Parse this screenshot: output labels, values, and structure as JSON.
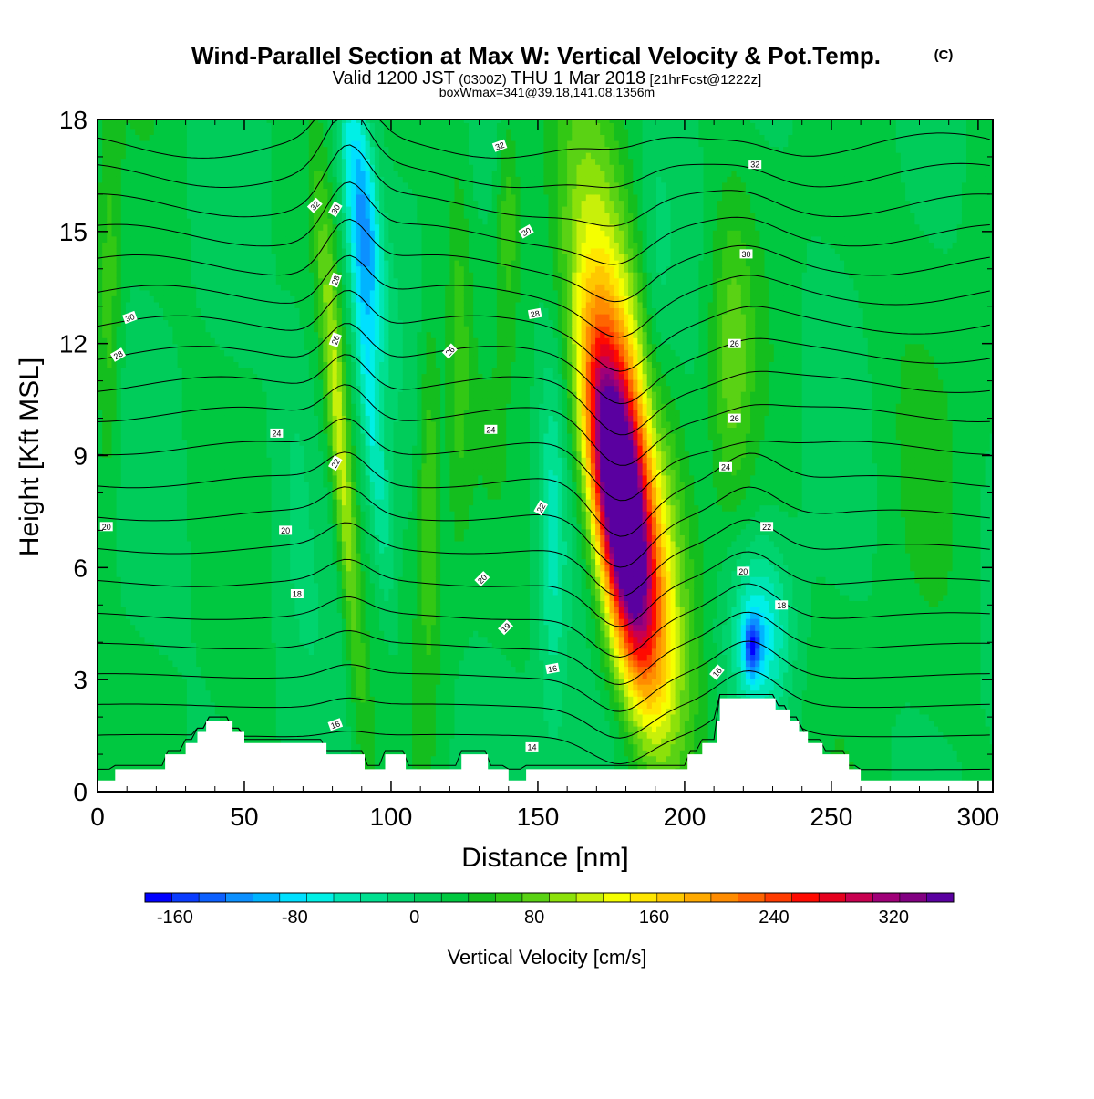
{
  "header": {
    "title_main": "Wind-Parallel Section at Max W: Vertical Velocity & Pot.Temp.",
    "title_mark": "(C)",
    "valid_a": "Valid 1200 JST",
    "valid_b": "(0300Z)",
    "valid_c": "THU 1 Mar 2018",
    "valid_d": "[21hrFcst@1222z]",
    "boxinfo": "boxWmax=341@39.18,141.08,1356m"
  },
  "chart_data": {
    "type": "heatmap",
    "xlabel": "Distance [nm]",
    "ylabel": "Height [Kft MSL]",
    "xlim": [
      0,
      305
    ],
    "ylim": [
      0,
      18
    ],
    "xticks": [
      0,
      50,
      100,
      150,
      200,
      250,
      300
    ],
    "yticks": [
      0,
      3,
      6,
      9,
      12,
      15,
      18
    ],
    "grid": false,
    "background_value": 20,
    "velocity_features": [
      {
        "x": 178,
        "y": 7.6,
        "sx": 9,
        "sy": 4.5,
        "tilt": -1.6,
        "w": 360
      },
      {
        "x": 181,
        "y": 9.5,
        "sx": 13,
        "sy": 7.5,
        "tilt": -1.6,
        "w": 140
      },
      {
        "x": 83,
        "y": 9.0,
        "sx": 3.5,
        "sy": 6.5,
        "tilt": -1.0,
        "w": 95
      },
      {
        "x": 91,
        "y": 15.5,
        "sx": 5,
        "sy": 3.5,
        "tilt": -1.2,
        "w": -120
      },
      {
        "x": 92,
        "y": 11.0,
        "sx": 4,
        "sy": 6,
        "tilt": -1.2,
        "w": -75
      },
      {
        "x": 113,
        "y": 8.0,
        "sx": 4,
        "sy": 5,
        "tilt": 0,
        "w": 55
      },
      {
        "x": 123,
        "y": 12.0,
        "sx": 4,
        "sy": 5,
        "tilt": 0,
        "w": 40
      },
      {
        "x": 155,
        "y": 7.0,
        "sx": 5,
        "sy": 5,
        "tilt": 0,
        "w": -55
      },
      {
        "x": 226,
        "y": 4.3,
        "sx": 10,
        "sy": 2.2,
        "tilt": 0,
        "w": -80
      },
      {
        "x": 223,
        "y": 3.9,
        "sx": 3,
        "sy": 0.8,
        "tilt": 0,
        "w": -110
      },
      {
        "x": 216,
        "y": 11.5,
        "sx": 7,
        "sy": 4,
        "tilt": 0,
        "w": 55
      },
      {
        "x": 190,
        "y": 12.5,
        "sx": 5,
        "sy": 4,
        "tilt": 0,
        "w": -25
      },
      {
        "x": 140,
        "y": 15.5,
        "sx": 4,
        "sy": 3,
        "tilt": 0,
        "w": 50
      },
      {
        "x": 4,
        "y": 13.0,
        "sx": 4,
        "sy": 5,
        "tilt": 0,
        "w": 45
      },
      {
        "x": 68,
        "y": 10.0,
        "sx": 7,
        "sy": 5,
        "tilt": 0,
        "w": -20
      },
      {
        "x": 40,
        "y": 6.0,
        "sx": 10,
        "sy": 4,
        "tilt": 0,
        "w": -10
      },
      {
        "x": 280,
        "y": 12.0,
        "sx": 20,
        "sy": 6,
        "tilt": 0,
        "w": 12
      },
      {
        "x": 170,
        "y": 1.3,
        "sx": 20,
        "sy": 1.5,
        "tilt": 0,
        "w": -15
      }
    ],
    "terrain": [
      [
        0,
        0.3
      ],
      [
        6,
        0.6
      ],
      [
        22,
        0.6
      ],
      [
        23,
        1.0
      ],
      [
        29,
        1.0
      ],
      [
        30,
        1.3
      ],
      [
        33,
        1.3
      ],
      [
        34,
        1.6
      ],
      [
        36,
        1.6
      ],
      [
        37,
        1.9
      ],
      [
        45,
        1.9
      ],
      [
        46,
        1.6
      ],
      [
        49,
        1.6
      ],
      [
        50,
        1.3
      ],
      [
        77,
        1.3
      ],
      [
        78,
        1.0
      ],
      [
        90,
        1.0
      ],
      [
        91,
        0.6
      ],
      [
        97,
        0.6
      ],
      [
        98,
        1.0
      ],
      [
        104,
        1.0
      ],
      [
        105,
        0.6
      ],
      [
        123,
        0.6
      ],
      [
        124,
        1.0
      ],
      [
        132,
        1.0
      ],
      [
        133,
        0.6
      ],
      [
        139,
        0.6
      ],
      [
        140,
        0.3
      ],
      [
        145,
        0.3
      ],
      [
        146,
        0.6
      ],
      [
        200,
        0.6
      ],
      [
        201,
        1.0
      ],
      [
        205,
        1.0
      ],
      [
        206,
        1.3
      ],
      [
        210,
        1.3
      ],
      [
        211,
        1.9
      ],
      [
        212,
        2.5
      ],
      [
        230,
        2.5
      ],
      [
        231,
        2.2
      ],
      [
        235,
        2.2
      ],
      [
        236,
        1.9
      ],
      [
        238,
        1.9
      ],
      [
        239,
        1.6
      ],
      [
        241,
        1.6
      ],
      [
        242,
        1.3
      ],
      [
        246,
        1.3
      ],
      [
        247,
        1.0
      ],
      [
        255,
        1.0
      ],
      [
        256,
        0.6
      ],
      [
        259,
        0.6
      ],
      [
        260,
        0.3
      ],
      [
        305,
        0.3
      ]
    ],
    "theta_contours": {
      "levels": [
        13,
        14,
        15,
        16,
        17,
        18,
        19,
        20,
        21,
        22,
        23,
        24,
        25,
        26,
        27,
        28,
        29,
        30,
        31,
        32,
        33
      ],
      "base_heights": [
        0.6,
        1.5,
        2.3,
        3.1,
        3.9,
        4.7,
        5.6,
        6.5,
        7.4,
        8.3,
        9.2,
        10.1,
        10.9,
        11.7,
        12.5,
        13.3,
        14.1,
        14.9,
        15.7,
        16.5,
        17.3
      ],
      "wave_phase": [
        0,
        110,
        -0.012
      ]
    },
    "contour_labels": [
      {
        "text": "32",
        "x": 74,
        "y": 15.7,
        "rot": -45
      },
      {
        "text": "30",
        "x": 81,
        "y": 15.6,
        "rot": -60
      },
      {
        "text": "28",
        "x": 81,
        "y": 13.7,
        "rot": -70
      },
      {
        "text": "26",
        "x": 81,
        "y": 12.1,
        "rot": -70
      },
      {
        "text": "22",
        "x": 81,
        "y": 8.8,
        "rot": -60
      },
      {
        "text": "30",
        "x": 11,
        "y": 12.7,
        "rot": -20
      },
      {
        "text": "28",
        "x": 7,
        "y": 11.7,
        "rot": -30
      },
      {
        "text": "24",
        "x": 61,
        "y": 9.6,
        "rot": 0
      },
      {
        "text": "20",
        "x": 3,
        "y": 7.1,
        "rot": 0
      },
      {
        "text": "20",
        "x": 64,
        "y": 7.0,
        "rot": 0
      },
      {
        "text": "18",
        "x": 68,
        "y": 5.3,
        "rot": 0
      },
      {
        "text": "16",
        "x": 81,
        "y": 1.8,
        "rot": -20
      },
      {
        "text": "32",
        "x": 137,
        "y": 17.3,
        "rot": -20
      },
      {
        "text": "30",
        "x": 146,
        "y": 15.0,
        "rot": -30
      },
      {
        "text": "28",
        "x": 149,
        "y": 12.8,
        "rot": -10
      },
      {
        "text": "26",
        "x": 120,
        "y": 11.8,
        "rot": -45
      },
      {
        "text": "24",
        "x": 134,
        "y": 9.7,
        "rot": 0
      },
      {
        "text": "22",
        "x": 151,
        "y": 7.6,
        "rot": -60
      },
      {
        "text": "20",
        "x": 131,
        "y": 5.7,
        "rot": -45
      },
      {
        "text": "19",
        "x": 139,
        "y": 4.4,
        "rot": -45
      },
      {
        "text": "16",
        "x": 155,
        "y": 3.3,
        "rot": -10
      },
      {
        "text": "14",
        "x": 148,
        "y": 1.2,
        "rot": 0
      },
      {
        "text": "32",
        "x": 224,
        "y": 16.8,
        "rot": 0
      },
      {
        "text": "30",
        "x": 221,
        "y": 14.4,
        "rot": 0
      },
      {
        "text": "26",
        "x": 217,
        "y": 12.0,
        "rot": 0
      },
      {
        "text": "26",
        "x": 217,
        "y": 10.0,
        "rot": 0
      },
      {
        "text": "24",
        "x": 214,
        "y": 8.7,
        "rot": 0
      },
      {
        "text": "22",
        "x": 228,
        "y": 7.1,
        "rot": 0
      },
      {
        "text": "20",
        "x": 220,
        "y": 5.9,
        "rot": 0
      },
      {
        "text": "18",
        "x": 233,
        "y": 5.0,
        "rot": 0
      },
      {
        "text": "16",
        "x": 211,
        "y": 3.2,
        "rot": -50
      }
    ],
    "colorbar": {
      "label": "Vertical Velocity [cm/s]",
      "tick_labels": [
        "-160",
        "-80",
        "0",
        "80",
        "160",
        "240",
        "320"
      ],
      "tick_values": [
        -160,
        -80,
        0,
        80,
        160,
        240,
        320
      ],
      "min": -180,
      "max": 360,
      "colors": [
        "#0000ff",
        "#0a3cff",
        "#0c60ff",
        "#0c90ff",
        "#00b4ff",
        "#00e0ff",
        "#00f0e6",
        "#00e6b4",
        "#00e090",
        "#00d46e",
        "#00cc5a",
        "#00c840",
        "#14be1e",
        "#32c814",
        "#5ad214",
        "#8ce10a",
        "#c8f00a",
        "#f5ff00",
        "#ffe600",
        "#ffc800",
        "#ffaa00",
        "#ff8c00",
        "#ff6400",
        "#ff3c00",
        "#ff0a00",
        "#e6001e",
        "#c80050",
        "#a00078",
        "#820082",
        "#5a00a0"
      ]
    }
  }
}
